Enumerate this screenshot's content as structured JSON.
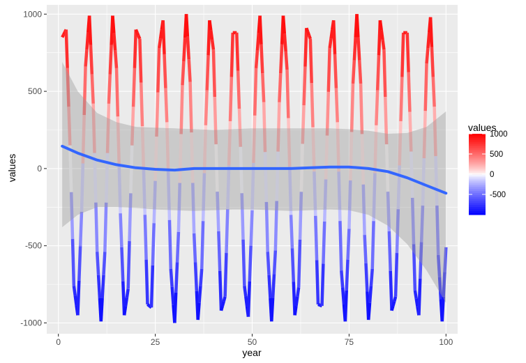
{
  "chart_data": {
    "type": "line",
    "title": "",
    "xlabel": "year",
    "ylabel": "values",
    "xlim": [
      -3,
      103
    ],
    "ylim": [
      -1070,
      1060
    ],
    "x_ticks": [
      0,
      25,
      50,
      75,
      100
    ],
    "x_tick_labels": [
      "0",
      "25",
      "50",
      "75",
      "100"
    ],
    "y_ticks": [
      -1000,
      -500,
      0,
      500,
      1000
    ],
    "y_tick_labels": [
      "-1000",
      "-500",
      "0",
      "500",
      "1000"
    ],
    "grid": true,
    "series": [
      {
        "name": "values",
        "kind": "colored-segments",
        "note": "oscillating series, one point per year (1-100), colored by value",
        "x": [
          1,
          2,
          3,
          4,
          5,
          6,
          7,
          8,
          9,
          10,
          11,
          12,
          13,
          14,
          15,
          16,
          17,
          18,
          19,
          20,
          21,
          22,
          23,
          24,
          25,
          26,
          27,
          28,
          29,
          30,
          31,
          32,
          33,
          34,
          35,
          36,
          37,
          38,
          39,
          40,
          41,
          42,
          43,
          44,
          45,
          46,
          47,
          48,
          49,
          50,
          51,
          52,
          53,
          54,
          55,
          56,
          57,
          58,
          59,
          60,
          61,
          62,
          63,
          64,
          65,
          66,
          67,
          68,
          69,
          70,
          71,
          72,
          73,
          74,
          75,
          76,
          77,
          78,
          79,
          80,
          81,
          82,
          83,
          84,
          85,
          86,
          87,
          88,
          89,
          90,
          91,
          92,
          93,
          94,
          95,
          96,
          97,
          98,
          99,
          100
        ],
        "values": [
          850,
          900,
          150,
          -760,
          -950,
          -280,
          660,
          990,
          420,
          -540,
          -990,
          -540,
          420,
          990,
          650,
          -290,
          -950,
          -780,
          150,
          900,
          840,
          -10,
          -880,
          -900,
          -80,
          780,
          960,
          300,
          -650,
          -1000,
          -410,
          540,
          1000,
          560,
          -420,
          -980,
          -650,
          280,
          960,
          770,
          -150,
          -920,
          -830,
          20,
          880,
          880,
          140,
          -760,
          -960,
          -270,
          650,
          990,
          430,
          -540,
          -990,
          -530,
          430,
          990,
          640,
          -300,
          -950,
          -770,
          160,
          910,
          840,
          -20,
          -880,
          -890,
          -70,
          780,
          960,
          300,
          -660,
          -990,
          -390,
          550,
          1000,
          550,
          -430,
          -980,
          -650,
          280,
          960,
          770,
          -150,
          -920,
          -830,
          20,
          880,
          880,
          110,
          -790,
          -950,
          -240,
          680,
          980,
          400,
          -560,
          -990,
          -510
        ]
      },
      {
        "name": "smooth",
        "kind": "loess",
        "color": "#3366ff",
        "x": [
          1,
          5,
          10,
          15,
          20,
          25,
          30,
          35,
          40,
          45,
          50,
          55,
          60,
          65,
          70,
          75,
          80,
          85,
          90,
          95,
          100
        ],
        "values": [
          145,
          100,
          55,
          25,
          5,
          -5,
          -10,
          0,
          0,
          0,
          0,
          0,
          0,
          5,
          10,
          10,
          0,
          -20,
          -60,
          -110,
          -160
        ],
        "ci_lower": [
          -380,
          -300,
          -250,
          -250,
          -255,
          -265,
          -270,
          -275,
          -270,
          -265,
          -265,
          -270,
          -275,
          -270,
          -265,
          -270,
          -300,
          -370,
          -490,
          -660,
          -870
        ],
        "ci_upper": [
          690,
          500,
          360,
          300,
          270,
          265,
          260,
          255,
          250,
          255,
          260,
          260,
          260,
          260,
          260,
          255,
          245,
          225,
          230,
          270,
          370
        ]
      }
    ],
    "legend": {
      "title": "values",
      "position": "right",
      "labels": [
        "1000",
        "500",
        "0",
        "-500"
      ],
      "label_values": [
        1000,
        500,
        0,
        -500
      ],
      "range": [
        -1000,
        1000
      ]
    },
    "colors": {
      "low": "#0000ff",
      "mid": "#ffffff",
      "high": "#ff0000",
      "panel": "#ebebeb",
      "grid_major": "#ffffff",
      "smooth_line": "#3366ff",
      "ci_band": "#999999"
    }
  }
}
